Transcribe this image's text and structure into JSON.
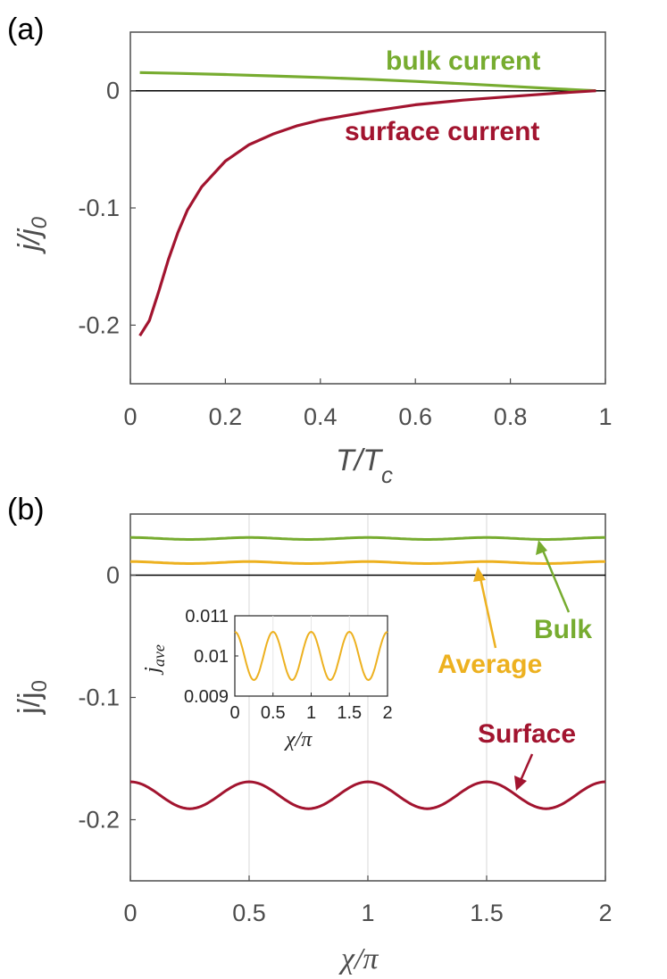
{
  "colors": {
    "green": "#77ac30",
    "red": "#a2142f",
    "yellow": "#edb120",
    "axis": "#4d4d4d",
    "grid": "#dedede",
    "zero": "#000000"
  },
  "chart_data": [
    {
      "panel_label": "(a)",
      "type": "line",
      "xlabel": "T/T",
      "xlabel_sub": "c",
      "ylabel": "j/j",
      "ylabel_sub": "0",
      "xlim": [
        0,
        1
      ],
      "ylim": [
        -0.25,
        0.05
      ],
      "xticks": [
        0,
        0.2,
        0.4,
        0.6,
        0.8,
        1
      ],
      "xtick_labels": [
        "0",
        "0.2",
        "0.4",
        "0.6",
        "0.8",
        "1"
      ],
      "yticks": [
        0,
        -0.1,
        -0.2
      ],
      "ytick_labels": [
        "0",
        "-0.1",
        "-0.2"
      ],
      "series": [
        {
          "name": "bulk current",
          "color": "green",
          "x": [
            0.02,
            0.1,
            0.2,
            0.3,
            0.4,
            0.5,
            0.6,
            0.7,
            0.8,
            0.9,
            0.98
          ],
          "y": [
            0.0155,
            0.0148,
            0.0138,
            0.0126,
            0.0113,
            0.0098,
            0.008,
            0.006,
            0.0038,
            0.0016,
            0.0
          ]
        },
        {
          "name": "surface current",
          "color": "red",
          "x": [
            0.02,
            0.04,
            0.06,
            0.08,
            0.1,
            0.12,
            0.15,
            0.2,
            0.25,
            0.3,
            0.35,
            0.4,
            0.5,
            0.6,
            0.7,
            0.8,
            0.9,
            0.98
          ],
          "y": [
            -0.209,
            -0.196,
            -0.171,
            -0.144,
            -0.121,
            -0.102,
            -0.082,
            -0.06,
            -0.046,
            -0.037,
            -0.03,
            -0.025,
            -0.018,
            -0.012,
            -0.008,
            -0.005,
            -0.002,
            0.0
          ]
        }
      ],
      "annotations": [
        {
          "text": "bulk current",
          "color": "green"
        },
        {
          "text": "surface current",
          "color": "red"
        }
      ]
    },
    {
      "panel_label": "(b)",
      "type": "line",
      "xlabel": "χ/π",
      "ylabel": "j/j",
      "ylabel_sub": "0",
      "xlim": [
        0,
        2
      ],
      "ylim": [
        -0.25,
        0.05
      ],
      "xticks": [
        0,
        0.5,
        1,
        1.5,
        2
      ],
      "xtick_labels": [
        "0",
        "0.5",
        "1",
        "1.5",
        "2"
      ],
      "yticks": [
        0,
        -0.1,
        -0.2
      ],
      "ytick_labels": [
        "0",
        "-0.1",
        "-0.2"
      ],
      "grid_x": [
        0.5,
        1,
        1.5
      ],
      "series": [
        {
          "name": "Bulk",
          "color": "green",
          "mean": 0.03,
          "amplitude": 0.0008,
          "period": 0.5
        },
        {
          "name": "Average",
          "color": "yellow",
          "mean": 0.0103,
          "amplitude": 0.0008,
          "period": 0.5
        },
        {
          "name": "Surface",
          "color": "red",
          "mean": -0.18,
          "amplitude": 0.011,
          "period": 0.5
        }
      ],
      "annotations": [
        {
          "text": "Bulk",
          "color": "green"
        },
        {
          "text": "Average",
          "color": "yellow"
        },
        {
          "text": "Surface",
          "color": "red"
        }
      ],
      "inset": {
        "type": "line",
        "xlabel": "χ/π",
        "ylabel": "j",
        "ylabel_sub": "ave",
        "xlim": [
          0,
          2
        ],
        "ylim": [
          0.009,
          0.011
        ],
        "xticks": [
          0,
          0.5,
          1,
          1.5,
          2
        ],
        "xtick_labels": [
          "0",
          "0.5",
          "1",
          "1.5",
          "2"
        ],
        "yticks": [
          0.011,
          0.01,
          0.009
        ],
        "ytick_labels": [
          "0.011",
          "0.01",
          "0.009"
        ],
        "series": [
          {
            "name": "j_ave",
            "color": "yellow",
            "mean": 0.01,
            "amplitude": 0.0006,
            "period": 0.5
          }
        ]
      }
    }
  ]
}
